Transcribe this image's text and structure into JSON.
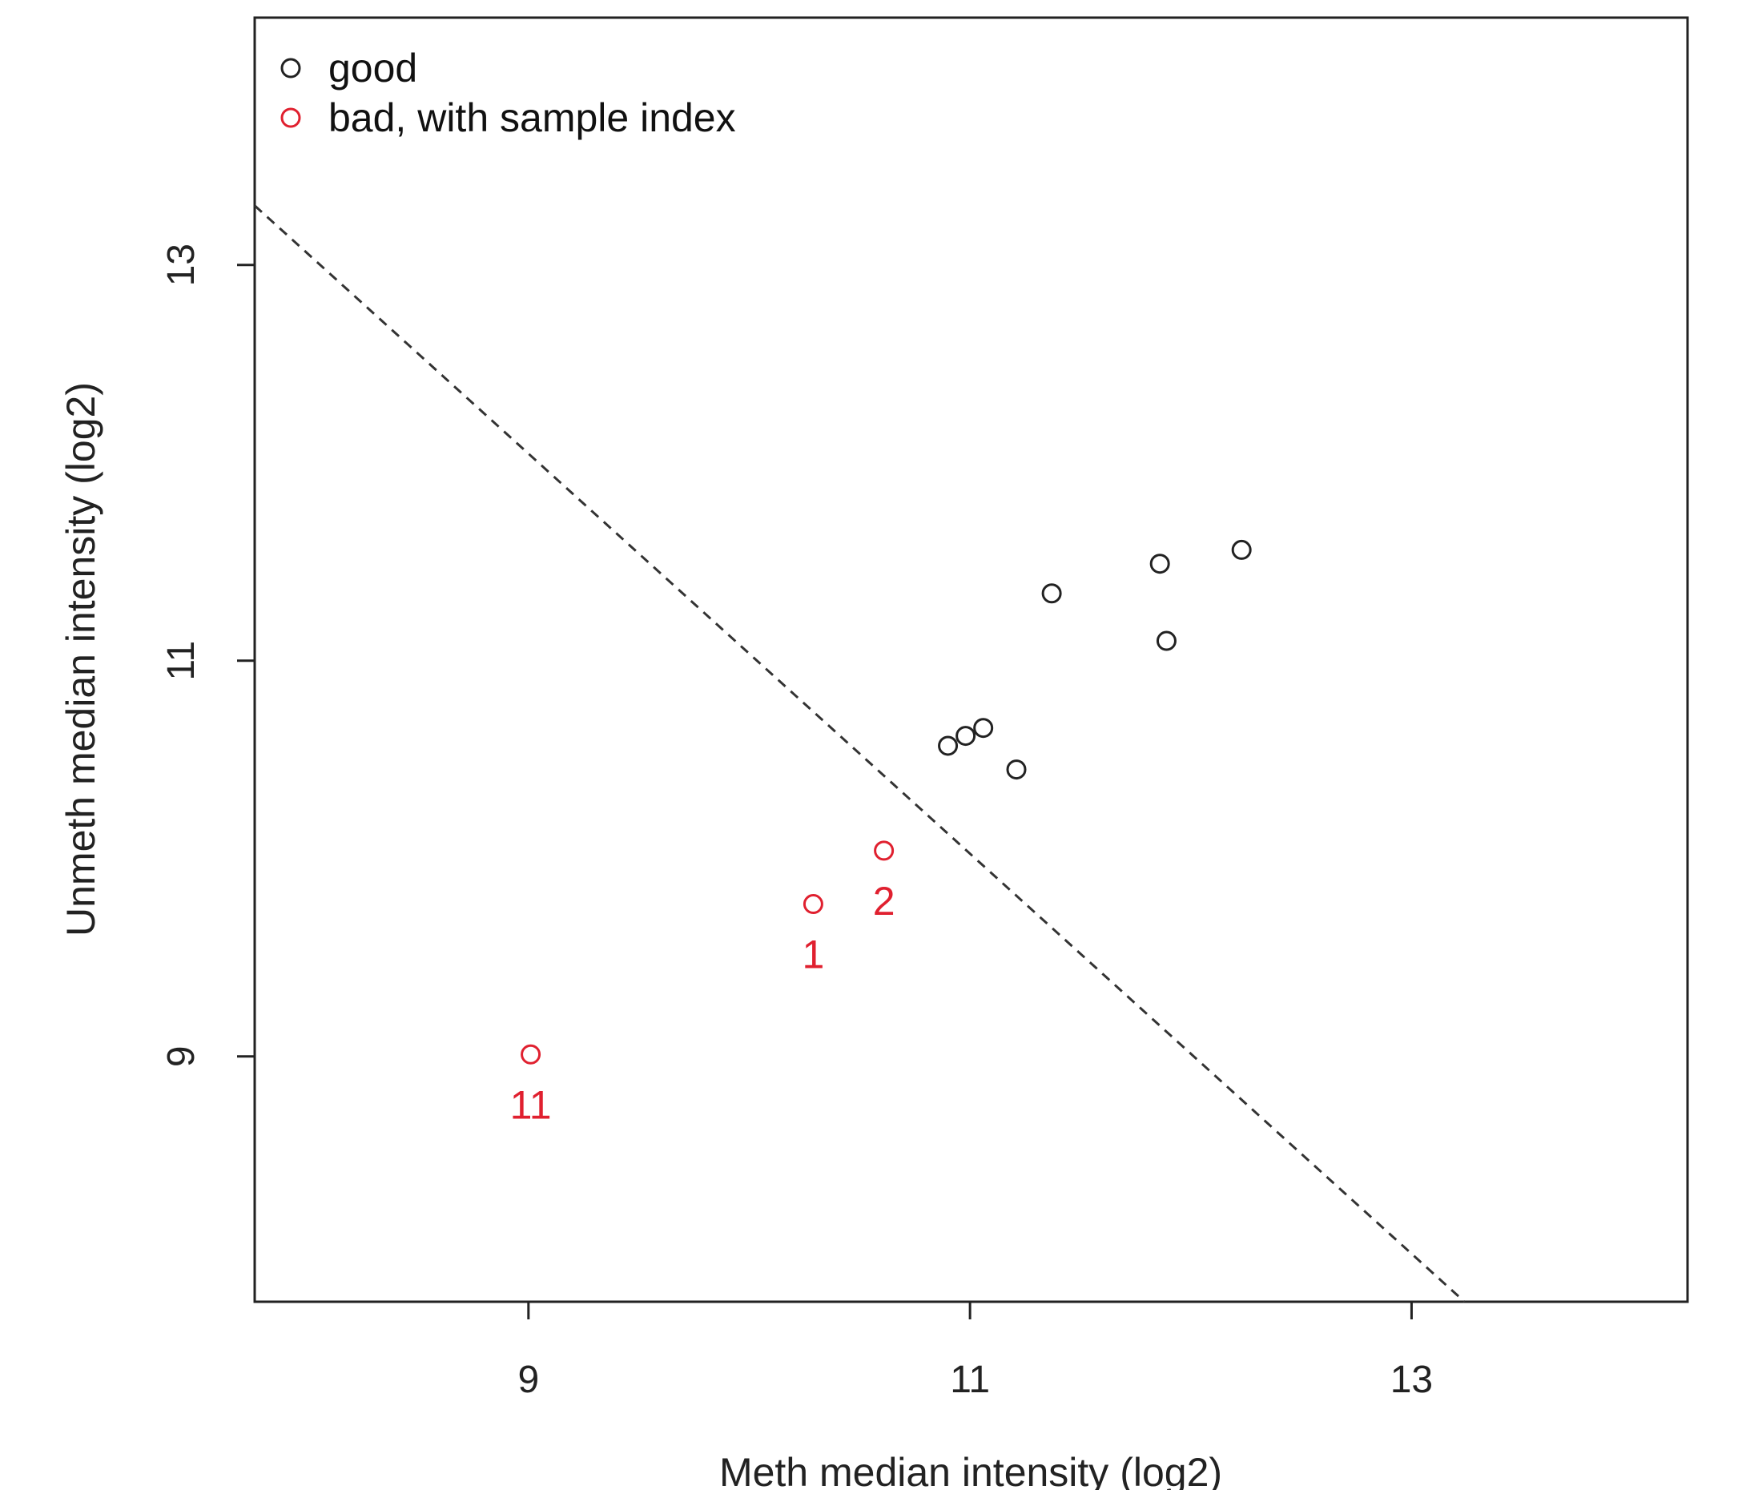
{
  "chart_data": {
    "type": "scatter",
    "xlabel": "Meth median intensity (log2)",
    "ylabel": "Unmeth median intensity (log2)",
    "xlim": [
      7.76,
      14.25
    ],
    "ylim": [
      7.76,
      14.25
    ],
    "xticks": [
      {
        "value": 9,
        "label": "9"
      },
      {
        "value": 11,
        "label": "11"
      },
      {
        "value": 13,
        "label": "13"
      }
    ],
    "yticks": [
      {
        "value": 9,
        "label": "9"
      },
      {
        "value": 11,
        "label": "11"
      },
      {
        "value": 13,
        "label": "13"
      }
    ],
    "legend": {
      "position": "top-left",
      "entries": [
        {
          "label": "good",
          "color": "#222222"
        },
        {
          "label": "bad, with sample index",
          "color": "#e0202f"
        }
      ]
    },
    "reference_line": {
      "style": "dashed",
      "color": "#333333",
      "points": [
        [
          7.76,
          13.3
        ],
        [
          13.24,
          7.76
        ]
      ]
    },
    "series": [
      {
        "name": "good",
        "color": "#222222",
        "points": [
          {
            "x": 10.9,
            "y": 10.57
          },
          {
            "x": 10.98,
            "y": 10.62
          },
          {
            "x": 11.06,
            "y": 10.66
          },
          {
            "x": 11.21,
            "y": 10.45
          },
          {
            "x": 11.37,
            "y": 11.34
          },
          {
            "x": 11.86,
            "y": 11.49
          },
          {
            "x": 11.89,
            "y": 11.1
          },
          {
            "x": 12.23,
            "y": 11.56
          }
        ]
      },
      {
        "name": "bad, with sample index",
        "color": "#e0202f",
        "points": [
          {
            "x": 10.29,
            "y": 9.77,
            "label": "1"
          },
          {
            "x": 10.61,
            "y": 10.04,
            "label": "2"
          },
          {
            "x": 9.01,
            "y": 9.01,
            "label": "11"
          }
        ]
      }
    ]
  }
}
